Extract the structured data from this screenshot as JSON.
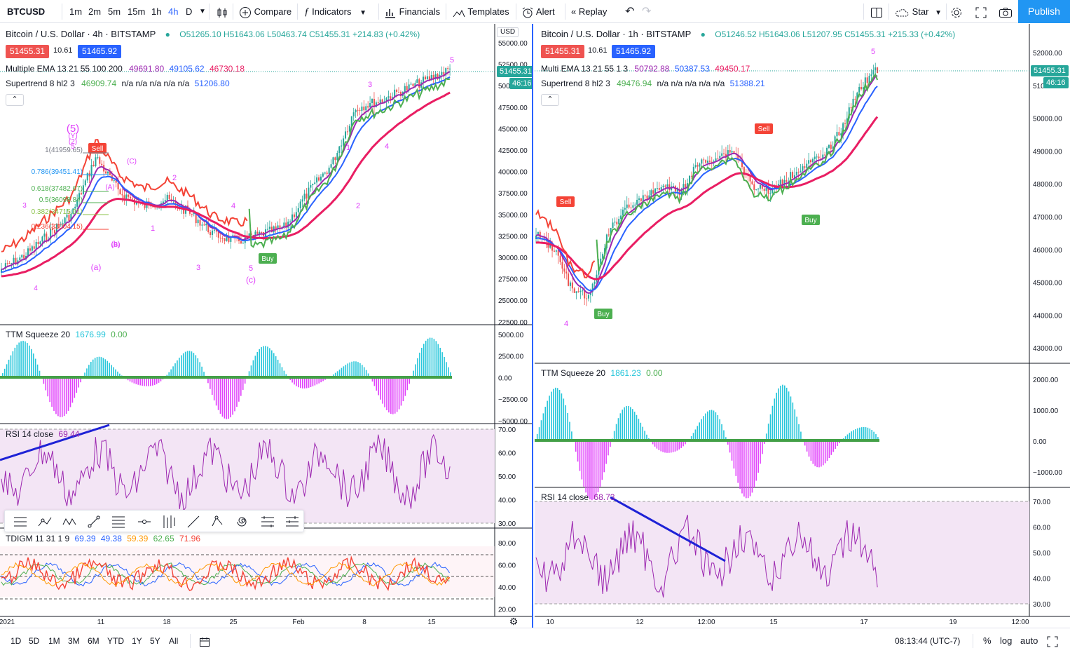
{
  "toolbar": {
    "symbol": "BTCUSD",
    "intervals": [
      "1m",
      "2m",
      "5m",
      "15m",
      "1h",
      "4h",
      "D"
    ],
    "active_interval": "4h",
    "compare": "Compare",
    "indicators": "Indicators",
    "financials": "Financials",
    "templates": "Templates",
    "alert": "Alert",
    "replay": "Replay",
    "star": "Star",
    "publish": "Publish"
  },
  "left": {
    "title": "Bitcoin / U.S. Dollar · 4h · BITSTAMP",
    "ohlc": "O51265.10 H51643.06 L50463.74 C51455.31 +214.83 (+0.42%)",
    "bid": "51455.31",
    "spread": "10.61",
    "ask": "51465.92",
    "ema_name": "Multiple EMA 13 21 55 100 200",
    "ema_v1": "49691.80",
    "ema_v2": "49105.62",
    "ema_v3": "46730.18",
    "st_name": "Supertrend 8 hl2 3",
    "st_v1": "46909.74",
    "st_na": "n/a n/a n/a n/a n/a",
    "st_v2": "51206.80",
    "currency": "USD",
    "price_label": "51455.31",
    "countdown": "46:16",
    "price_axis": [
      "55000.00",
      "52500.00",
      "50000.00",
      "47500.00",
      "45000.00",
      "42500.00",
      "40000.00",
      "37500.00",
      "35000.00",
      "32500.00",
      "30000.00",
      "27500.00",
      "25000.00",
      "22500.00"
    ],
    "ttm_name": "TTM Squeeze 20",
    "ttm_v1": "1676.99",
    "ttm_v2": "0.00",
    "ttm_axis": [
      "5000.00",
      "2500.00",
      "0.00",
      "−2500.00",
      "−5000.00"
    ],
    "rsi_name": "RSI 14 close",
    "rsi_v": "69.44",
    "rsi_axis": [
      "70.00",
      "60.00",
      "50.00",
      "40.00",
      "30.00"
    ],
    "tdi_name": "TDIGM 11 31 1 9",
    "tdi_v1": "69.39",
    "tdi_v2": "49.38",
    "tdi_v3": "59.39",
    "tdi_v4": "62.65",
    "tdi_v5": "71.96",
    "tdi_axis": [
      "80.00",
      "60.00",
      "40.00",
      "20.00"
    ],
    "time_axis": [
      "2021",
      "11",
      "18",
      "25",
      "Feb",
      "8",
      "15"
    ],
    "fib": [
      "1(41959.65)",
      "0.786(39451.41)",
      "0.618(37482.67)",
      "0.5(36098.84)",
      "0.382(34715.01)",
      "0.236(33004.15)"
    ],
    "waves": [
      "(5)",
      "(Y)",
      "(2)",
      "5",
      "3",
      "4",
      "(a)",
      "(b)",
      "(c)",
      "(A)",
      "(B)",
      "(C)",
      "1",
      "2",
      "3",
      "4",
      "5"
    ],
    "signals": {
      "sell": "Sell",
      "buy": "Buy"
    }
  },
  "right": {
    "title": "Bitcoin / U.S. Dollar · 1h · BITSTAMP",
    "ohlc": "O51246.52 H51643.06 L51207.95 C51455.31 +215.33 (+0.42%)",
    "bid": "51455.31",
    "spread": "10.61",
    "ask": "51465.92",
    "ema_name": "Multi EMA 13 21 55 1 3",
    "ema_v1": "50792.88",
    "ema_v2": "50387.53",
    "ema_v3": "49450.17",
    "st_name": "Supertrend 8 hl2 3",
    "st_v1": "49476.94",
    "st_na": "n/a n/a n/a n/a n/a",
    "st_v2": "51388.21",
    "price_label": "51455.31",
    "countdown": "46:16",
    "price_axis": [
      "52000.00",
      "51000.00",
      "50000.00",
      "49000.00",
      "48000.00",
      "47000.00",
      "46000.00",
      "45000.00",
      "44000.00",
      "43000.00"
    ],
    "ttm_name": "TTM Squeeze 20",
    "ttm_v1": "1861.23",
    "ttm_v2": "0.00",
    "ttm_axis": [
      "2000.00",
      "1000.00",
      "0.00",
      "−1000.00"
    ],
    "rsi_name": "RSI 14 close",
    "rsi_v": "68.73",
    "rsi_axis": [
      "70.00",
      "60.00",
      "50.00",
      "40.00",
      "30.00"
    ],
    "time_axis": [
      "10",
      "12",
      "12:00",
      "15",
      "17",
      "19",
      "12:00"
    ],
    "waves": [
      "5",
      "4"
    ],
    "signals": {
      "sell": "Sell",
      "buy": "Buy"
    }
  },
  "bottom": {
    "ranges": [
      "1D",
      "5D",
      "1M",
      "3M",
      "6M",
      "YTD",
      "1Y",
      "5Y",
      "All"
    ],
    "clock": "08:13:44 (UTC-7)",
    "percent": "%",
    "log": "log",
    "auto": "auto"
  },
  "colors": {
    "accent": "#2962ff",
    "up": "#26a69a",
    "down": "#ef5350",
    "ema_fast": "#9c27b0",
    "ema_mid": "#2962ff",
    "ema_slow": "#e91e63",
    "supertrend_up": "#4caf50",
    "supertrend_down": "#f44336",
    "ttm_pos": "#26c6da",
    "ttm_neg": "#e040fb",
    "rsi": "#9c27b0",
    "rsi_band": "#f3e5f5",
    "wave": "#e040fb",
    "publish": "#2196f3"
  }
}
